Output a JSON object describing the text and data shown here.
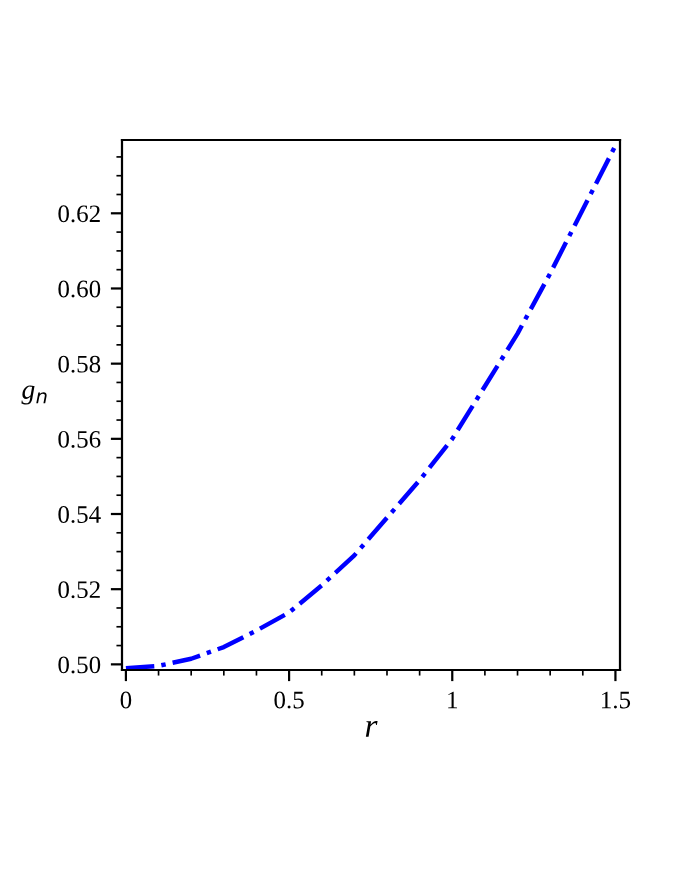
{
  "chart_data": {
    "type": "line",
    "xlabel": "r",
    "ylabel": "g$_{n}$",
    "x": [
      0,
      0.1,
      0.2,
      0.3,
      0.4,
      0.5,
      0.6,
      0.7,
      0.8,
      0.9,
      1.0,
      1.1,
      1.2,
      1.3,
      1.4,
      1.5
    ],
    "series": [
      {
        "color": "#0000ff",
        "values": [
          0.499,
          0.4996,
          0.5015,
          0.5046,
          0.509,
          0.5138,
          0.521,
          0.529,
          0.539,
          0.549,
          0.56,
          0.574,
          0.588,
          0.604,
          0.621,
          0.638
        ]
      }
    ],
    "line_style": "dashdot",
    "xlim": [
      -0.012,
      1.514
    ],
    "ylim": [
      0.4985,
      0.6395
    ],
    "xticks": [
      0,
      0.5,
      1,
      1.5
    ],
    "yticks": [
      {
        "value": 0.5,
        "label": "0.50"
      },
      {
        "value": 0.52,
        "label": "0.52"
      },
      {
        "value": 0.54,
        "label": "0.54"
      },
      {
        "value": 0.56,
        "label": "0.56"
      },
      {
        "value": 0.58,
        "label": "0.58"
      },
      {
        "value": 0.6,
        "label": "0.60"
      },
      {
        "value": 0.62,
        "label": "0.62"
      }
    ],
    "grid": false,
    "legend": false
  }
}
